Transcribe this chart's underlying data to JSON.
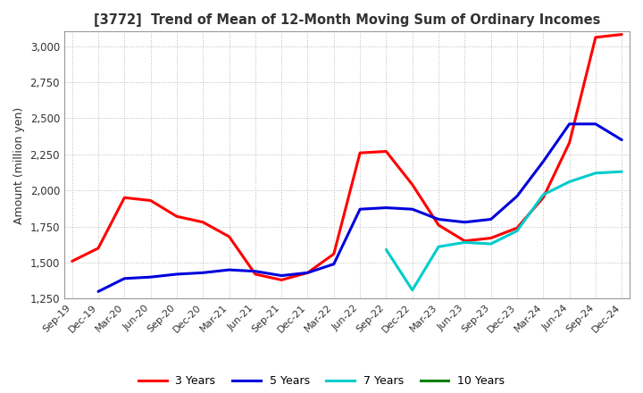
{
  "title": "[3772]  Trend of Mean of 12-Month Moving Sum of Ordinary Incomes",
  "ylabel": "Amount (million yen)",
  "ylim": [
    1250,
    3100
  ],
  "yticks": [
    1250,
    1500,
    1750,
    2000,
    2250,
    2500,
    2750,
    3000
  ],
  "background_color": "#ffffff",
  "grid_color": "#bbbbbb",
  "x_labels": [
    "Sep-19",
    "Dec-19",
    "Mar-20",
    "Jun-20",
    "Sep-20",
    "Dec-20",
    "Mar-21",
    "Jun-21",
    "Sep-21",
    "Dec-21",
    "Mar-22",
    "Jun-22",
    "Sep-22",
    "Dec-22",
    "Mar-23",
    "Jun-23",
    "Sep-23",
    "Dec-23",
    "Mar-24",
    "Jun-24",
    "Sep-24",
    "Dec-24"
  ],
  "series": {
    "3 Years": {
      "color": "#ff0000",
      "data": [
        1510,
        1600,
        1950,
        1930,
        1820,
        1780,
        1680,
        1420,
        1380,
        1430,
        1560,
        2260,
        2270,
        2040,
        1760,
        1650,
        1670,
        1740,
        1950,
        2330,
        3060,
        3080
      ]
    },
    "5 Years": {
      "color": "#0000dd",
      "data": [
        null,
        1300,
        1390,
        1400,
        1420,
        1430,
        1450,
        1440,
        1410,
        1430,
        1490,
        1870,
        1880,
        1870,
        1800,
        1780,
        1800,
        1960,
        2200,
        2460,
        2460,
        2350
      ]
    },
    "7 Years": {
      "color": "#00cccc",
      "data": [
        null,
        null,
        null,
        null,
        null,
        null,
        null,
        null,
        null,
        null,
        null,
        null,
        1590,
        1310,
        1610,
        1640,
        1630,
        1720,
        1970,
        2060,
        2120,
        2130
      ]
    },
    "10 Years": {
      "color": "#008000",
      "data": [
        null,
        null,
        null,
        null,
        null,
        null,
        null,
        null,
        null,
        null,
        null,
        null,
        null,
        null,
        null,
        null,
        null,
        null,
        null,
        null,
        null,
        null
      ]
    }
  },
  "legend_entries": [
    "3 Years",
    "5 Years",
    "7 Years",
    "10 Years"
  ],
  "legend_colors": [
    "#ff0000",
    "#0000dd",
    "#00cccc",
    "#008000"
  ]
}
